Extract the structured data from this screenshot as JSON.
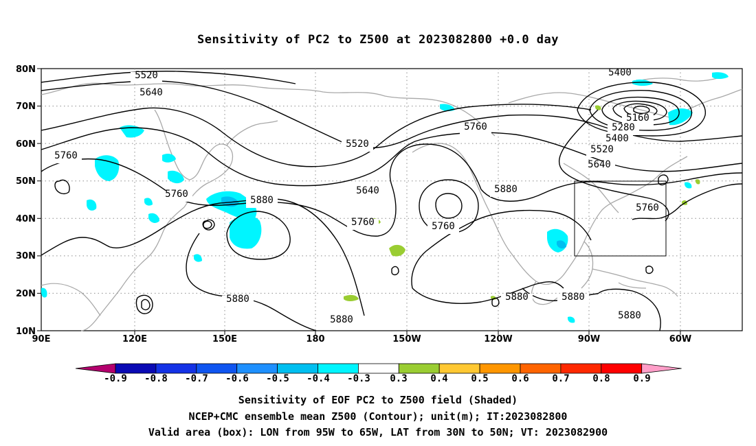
{
  "title": "Sensitivity of PC2 to Z500 at 2023082800 +0.0 day",
  "lat_ticks": [
    "80N",
    "70N",
    "60N",
    "50N",
    "40N",
    "30N",
    "20N",
    "10N"
  ],
  "lon_ticks": [
    "90E",
    "120E",
    "150E",
    "180",
    "150W",
    "120W",
    "90W",
    "60W"
  ],
  "contour_labels": [
    "5520",
    "5640",
    "5400",
    "5160",
    "5280",
    "5400",
    "5520",
    "5640",
    "5760",
    "5520",
    "5760",
    "5760",
    "5640",
    "5880",
    "5880",
    "5760",
    "5760",
    "5760",
    "5880",
    "5880",
    "5880",
    "5880",
    "5880",
    "5880"
  ],
  "colorbar": {
    "labels": [
      "-0.9",
      "-0.8",
      "-0.7",
      "-0.6",
      "-0.5",
      "-0.4",
      "-0.3",
      "0.3",
      "0.4",
      "0.5",
      "0.6",
      "0.7",
      "0.8",
      "0.9"
    ],
    "colors": [
      "#b4006e",
      "#0a0ab4",
      "#1432e6",
      "#0f55f0",
      "#1e90ff",
      "#00bff0",
      "#00f5ff",
      "#ffffff",
      "#9acd32",
      "#ffc832",
      "#ff9600",
      "#ff6400",
      "#ff2800",
      "#ff0000",
      "#ff9ec8"
    ]
  },
  "captions": {
    "line1": "Sensitivity of EOF PC2 to Z500 field (Shaded)",
    "line2": "NCEP+CMC ensemble mean Z500 (Contour); unit(m); IT:2023082800",
    "line3": "Valid area (box): LON from 95W to 65W, LAT from 30N to 50N; VT: 2023082900"
  }
}
